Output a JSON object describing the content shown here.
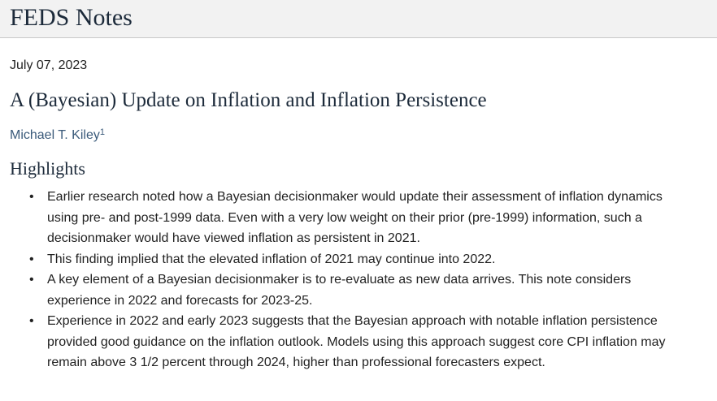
{
  "header": {
    "title": "FEDS Notes"
  },
  "article": {
    "date": "July 07, 2023",
    "title": "A (Bayesian) Update on Inflation and Inflation Persistence",
    "author": "Michael T. Kiley",
    "author_footnote": "1",
    "highlights_heading": "Highlights",
    "highlights": [
      "Earlier research noted how a Bayesian decisionmaker would update their assessment of inflation dynamics using pre- and post-1999 data. Even with a very low weight on their prior (pre-1999) information, such a decisionmaker would have viewed inflation as persistent in 2021.",
      "This finding implied that the elevated inflation of 2021 may continue into 2022.",
      "A key element of a Bayesian decisionmaker is to re-evaluate as new data arrives. This note considers experience in 2022 and forecasts for 2023-25.",
      "Experience in 2022 and early 2023 suggests that the Bayesian approach with notable inflation persistence provided good guidance on the inflation outlook. Models using this approach suggest core CPI inflation may remain above 3 1/2 percent through 2024, higher than professional forecasters expect."
    ]
  },
  "colors": {
    "masthead_bg": "#f2f2f2",
    "heading_text": "#1c2a3a",
    "author_link": "#3a5a7a",
    "body_text": "#222222"
  }
}
